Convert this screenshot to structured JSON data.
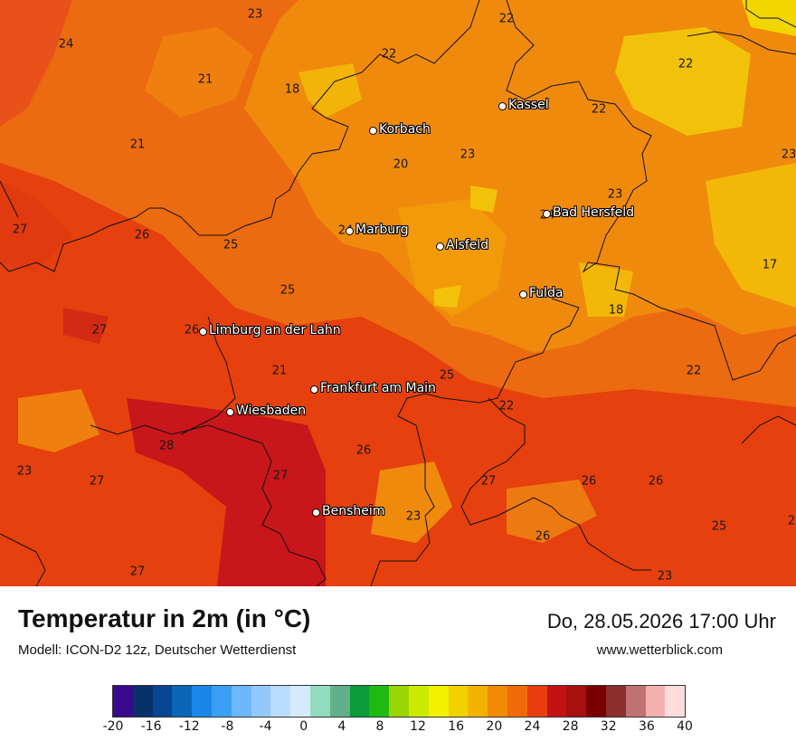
{
  "map": {
    "cities": [
      {
        "name": "Kassel"
      },
      {
        "name": "Korbach"
      },
      {
        "name": "Bad Hersfeld"
      },
      {
        "name": "Marburg"
      },
      {
        "name": "Alsfeld"
      },
      {
        "name": "Fulda"
      },
      {
        "name": "Limburg an der Lahn"
      },
      {
        "name": "Frankfurt am Main"
      },
      {
        "name": "Wiesbaden"
      },
      {
        "name": "Bensheim"
      }
    ],
    "values": [
      "23",
      "22",
      "24",
      "22",
      "21",
      "22",
      "18",
      "22",
      "23",
      "21",
      "20",
      "23",
      "23",
      "27",
      "26",
      "25",
      "24",
      "17",
      "24",
      "25",
      "18",
      "27",
      "26",
      "21",
      "25",
      "22",
      "22",
      "28",
      "26",
      "23",
      "27",
      "27",
      "27",
      "26",
      "26",
      "23",
      "26",
      "25",
      "27",
      "23",
      "2"
    ]
  },
  "header": {
    "title": "Temperatur in 2m (in °C)",
    "subtitle": "Modell: ICON-D2 12z, Deutscher Wetterdienst",
    "datetime": "Do, 28.05.2026 17:00 Uhr",
    "website": "www.wetterblick.com"
  },
  "legend": {
    "colors": [
      "#3a0a8c",
      "#08306b",
      "#084590",
      "#0865b8",
      "#1a86e8",
      "#3aa0f5",
      "#6cb8fa",
      "#92c9fa",
      "#b8dcfb",
      "#d6eafd",
      "#92dbbe",
      "#61b08a",
      "#0c9b3a",
      "#1fbb12",
      "#9ad506",
      "#ccea00",
      "#f2f200",
      "#f2d100",
      "#f2b200",
      "#f28a06",
      "#f06b08",
      "#e83e0d",
      "#c21212",
      "#a80f0f",
      "#7a0000",
      "#8a2e2e",
      "#c07272",
      "#f7b0b0",
      "#ffdcdc"
    ],
    "ticks": [
      "-20",
      "-16",
      "-12",
      "-8",
      "-4",
      "0",
      "4",
      "8",
      "12",
      "16",
      "20",
      "24",
      "28",
      "32",
      "36",
      "40"
    ]
  }
}
